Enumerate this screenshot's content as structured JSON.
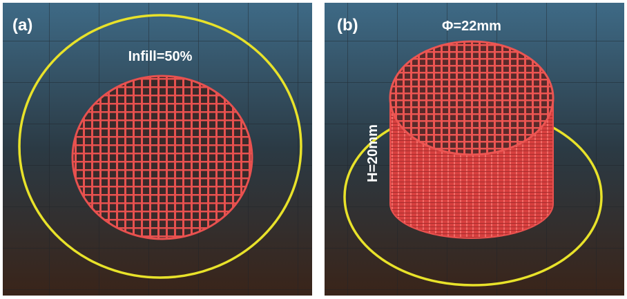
{
  "panels": [
    {
      "label": "(a)",
      "annotations": [
        "Infill=50%"
      ]
    },
    {
      "label": "(b)",
      "annotations": [
        "Φ=22mm",
        "H=20mm"
      ]
    }
  ]
}
